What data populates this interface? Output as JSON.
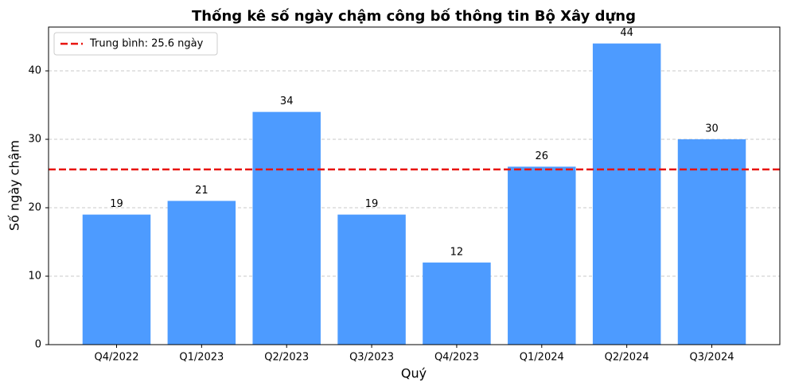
{
  "chart_data": {
    "type": "bar",
    "title": "Thống kê số ngày chậm công bố thông tin Bộ Xây dựng",
    "xlabel": "Quý",
    "ylabel": "Số ngày chậm",
    "categories": [
      "Q4/2022",
      "Q1/2023",
      "Q2/2023",
      "Q3/2023",
      "Q4/2023",
      "Q1/2024",
      "Q2/2024",
      "Q3/2024"
    ],
    "values": [
      19,
      21,
      34,
      19,
      12,
      26,
      44,
      30
    ],
    "color": "#4d9bff",
    "ylim": [
      0,
      46.4
    ],
    "yticks": [
      0,
      10,
      20,
      30,
      40
    ],
    "grid": true,
    "reference_line": {
      "value": 25.6,
      "label": "Trung bình: 25.6 ngày",
      "color": "#e8140f"
    },
    "legend": "upper left"
  }
}
